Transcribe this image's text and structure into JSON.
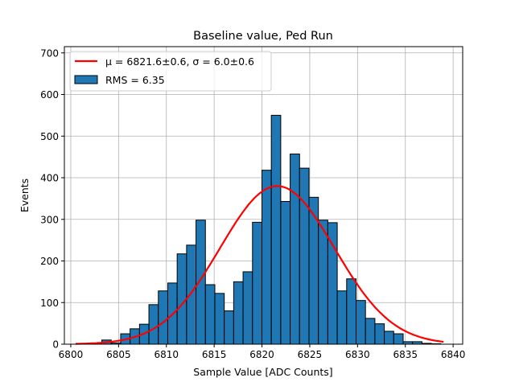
{
  "chart_data": {
    "type": "bar",
    "title": "Baseline value, Ped Run",
    "xlabel": "Sample Value [ADC Counts]",
    "ylabel": "Events",
    "xlim": [
      6799.33,
      6841.0
    ],
    "ylim": [
      0,
      715
    ],
    "xticks": [
      6800,
      6805,
      6810,
      6815,
      6820,
      6825,
      6830,
      6835,
      6840
    ],
    "yticks": [
      0,
      100,
      200,
      300,
      400,
      500,
      600,
      700
    ],
    "grid": true,
    "legend_position": "top-left",
    "histogram": {
      "name": "RMS = 6.35",
      "color": "#1f77b4",
      "bin_start": 6801.28,
      "bin_width": 0.985,
      "counts": [
        2,
        1,
        10,
        3,
        25,
        37,
        48,
        95,
        128,
        147,
        217,
        238,
        298,
        143,
        122,
        80,
        150,
        174,
        293,
        418,
        550,
        343,
        457,
        423,
        353,
        298,
        292,
        128,
        157,
        105,
        62,
        49,
        31,
        25,
        6,
        6,
        2,
        1
      ]
    },
    "fit": {
      "name": "μ = 6821.6±0.6, σ = 6.0±0.6",
      "color": "#ff0000",
      "mu": 6821.6,
      "sigma": 6.0,
      "amplitude": 380,
      "x_range": [
        6800.5,
        6839
      ]
    }
  }
}
